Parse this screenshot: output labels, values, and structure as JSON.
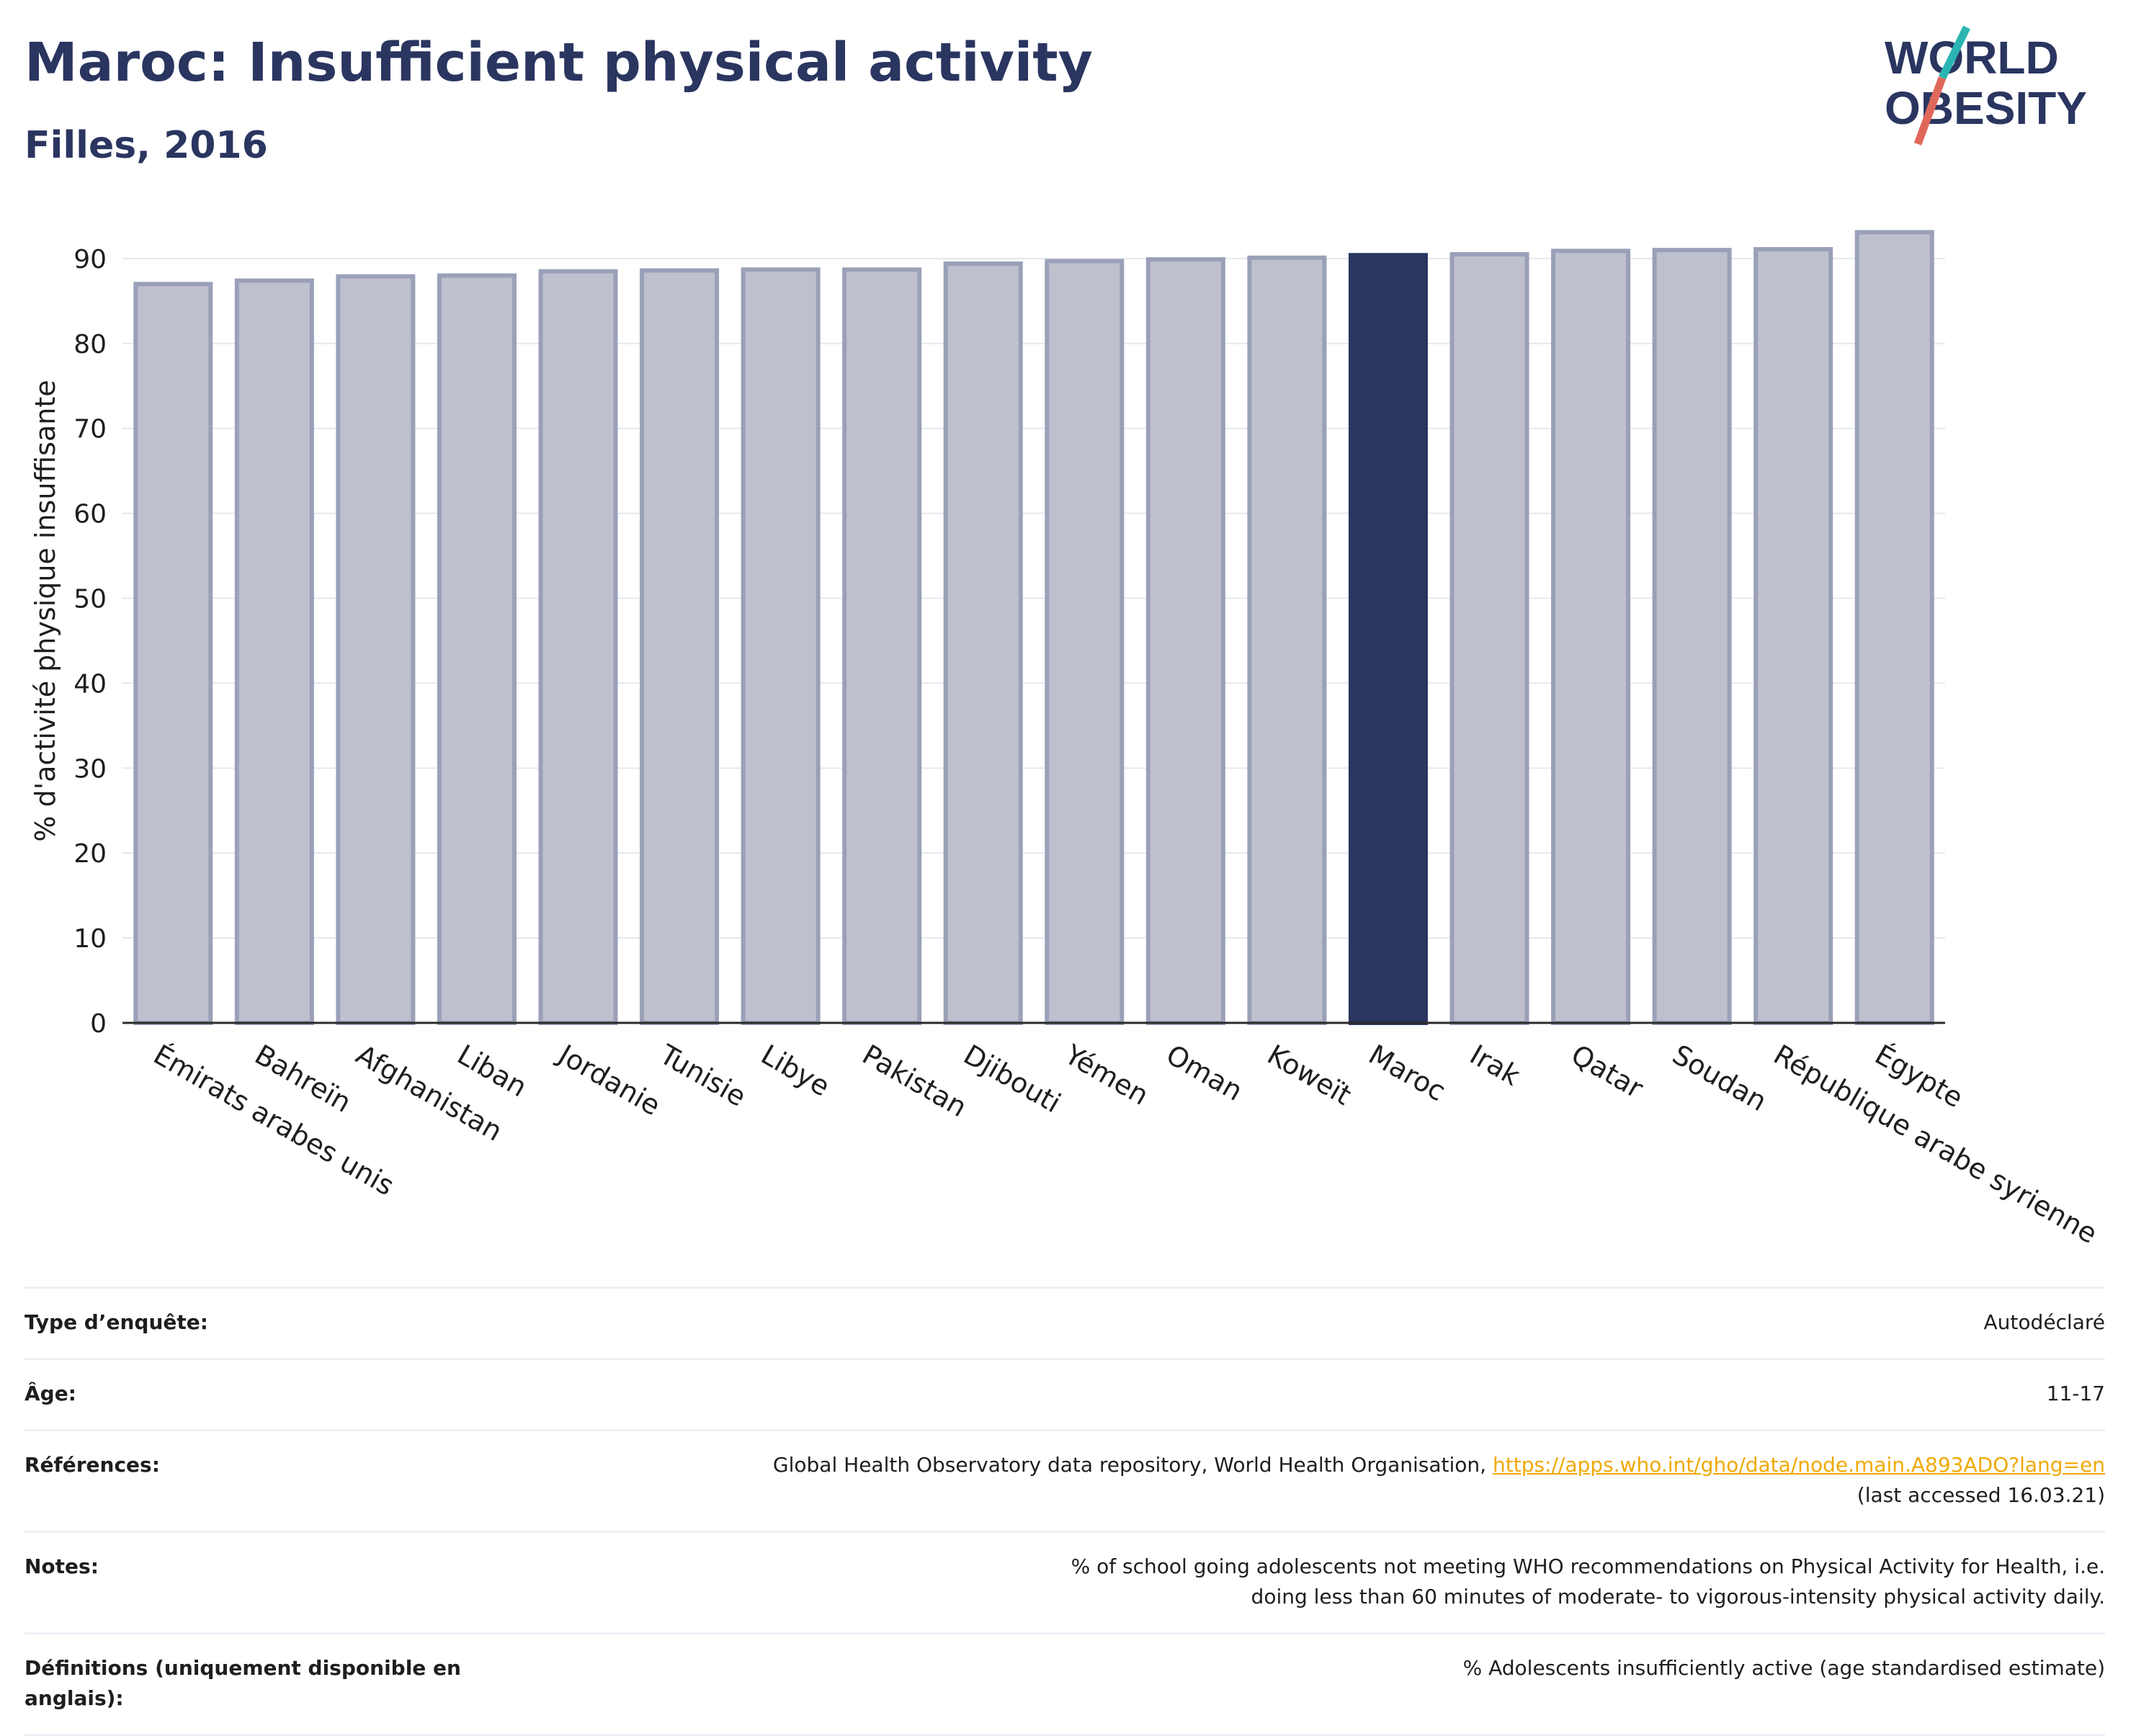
{
  "header": {
    "title": "Maroc: Insufficient physical activity",
    "subtitle": "Filles, 2016"
  },
  "logo": {
    "line1": "WORLD",
    "line2": "OBESITY"
  },
  "colors": {
    "highlight": "#2a3560",
    "bar": "#bec1cd",
    "bar_stroke": "#9aa0b8",
    "axis": "#2a2a2a",
    "grid": "#e6e8ef"
  },
  "chart_data": {
    "type": "bar",
    "categories": [
      "Émirats arabes unis",
      "Bahreïn",
      "Afghanistan",
      "Liban",
      "Jordanie",
      "Tunisie",
      "Libye",
      "Pakistan",
      "Djibouti",
      "Yémen",
      "Oman",
      "Koweït",
      "Maroc",
      "Irak",
      "Qatar",
      "Soudan",
      "République arabe syrienne",
      "Égypte"
    ],
    "values": [
      87.0,
      87.4,
      87.9,
      88.0,
      88.5,
      88.6,
      88.7,
      88.7,
      89.4,
      89.7,
      89.9,
      90.1,
      90.4,
      90.5,
      90.9,
      91.0,
      91.1,
      93.1
    ],
    "highlight": "Maroc",
    "title": "Maroc: Insufficient physical activity",
    "subtitle": "Filles, 2016",
    "xlabel": "",
    "ylabel": "% d'activité physique insuffisante",
    "ylim": [
      0,
      95
    ],
    "yticks": [
      0,
      10,
      20,
      30,
      40,
      50,
      60,
      70,
      80,
      90
    ],
    "grid": true
  },
  "info": {
    "survey_label": "Type d’enquête:",
    "survey_value": "Autodéclaré",
    "age_label": "Âge:",
    "age_value": "11-17",
    "refs_label": "Références:",
    "refs_text": "Global Health Observatory data repository, World Health Organisation, ",
    "refs_link": "https://apps.who.int/gho/data/node.main.A893ADO?lang=en",
    "refs_accessed": "(last accessed 16.03.21)",
    "notes_label": "Notes:",
    "notes_value": "% of school going adolescents not meeting WHO recommendations on Physical Activity for Health, i.e. doing less than 60 minutes of moderate- to vigorous-intensity physical activity daily.",
    "defs_label": "Définitions (uniquement disponible en anglais):",
    "defs_value": "% Adolescents insufficiently active (age standardised estimate)"
  }
}
